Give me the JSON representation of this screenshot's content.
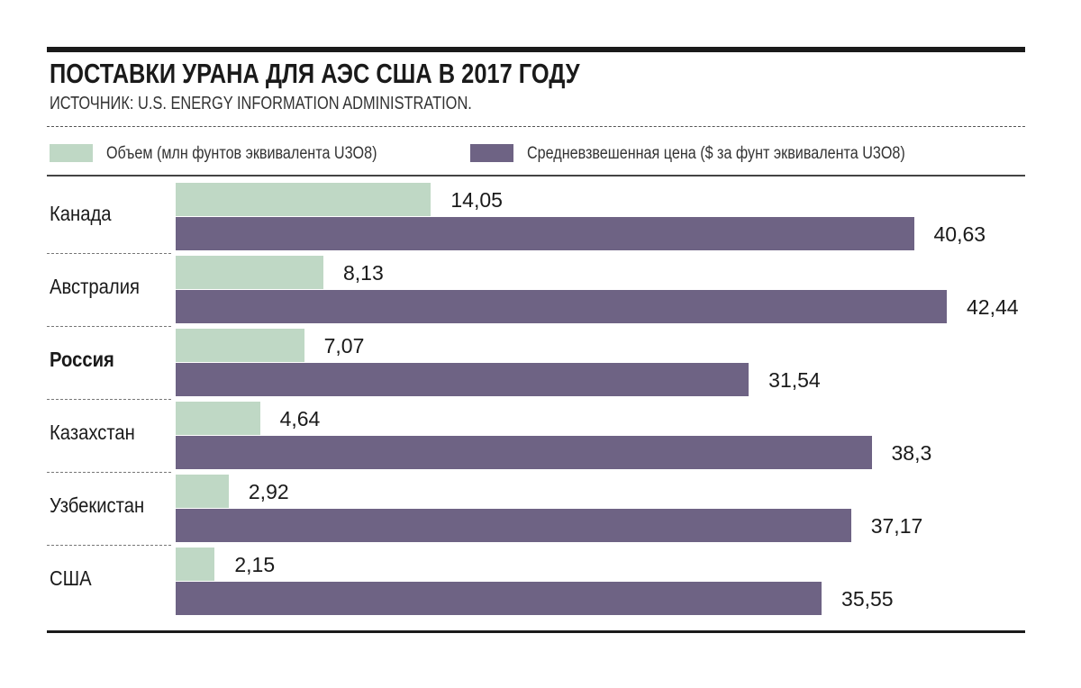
{
  "chart_data": {
    "type": "bar",
    "orientation": "horizontal",
    "title": "ПОСТАВКИ УРАНА ДЛЯ АЭС США В 2017 ГОДУ",
    "subtitle": "ИСТОЧНИК: U.S. ENERGY INFORMATION ADMINISTRATION.",
    "categories": [
      "Канада",
      "Австралия",
      "Россия",
      "Казахстан",
      "Узбекистан",
      "США"
    ],
    "highlighted_category": "Россия",
    "series": [
      {
        "name": "Объем (млн фунтов эквивалента U3O8)",
        "color": "#bfd8c5",
        "values": [
          14.05,
          8.13,
          7.07,
          4.64,
          2.92,
          2.15
        ],
        "labels": [
          "14,05",
          "8,13",
          "7,07",
          "4,64",
          "2,92",
          "2,15"
        ]
      },
      {
        "name": "Средневзвешенная цена ($ за фунт эквивалента U3O8)",
        "color": "#6e6384",
        "values": [
          40.63,
          42.44,
          31.54,
          38.3,
          37.17,
          35.55
        ],
        "labels": [
          "40,63",
          "42,44",
          "31,54",
          "38,3",
          "37,17",
          "35,55"
        ]
      }
    ],
    "xlim": [
      0,
      45
    ],
    "grid": false,
    "legend": "top"
  }
}
